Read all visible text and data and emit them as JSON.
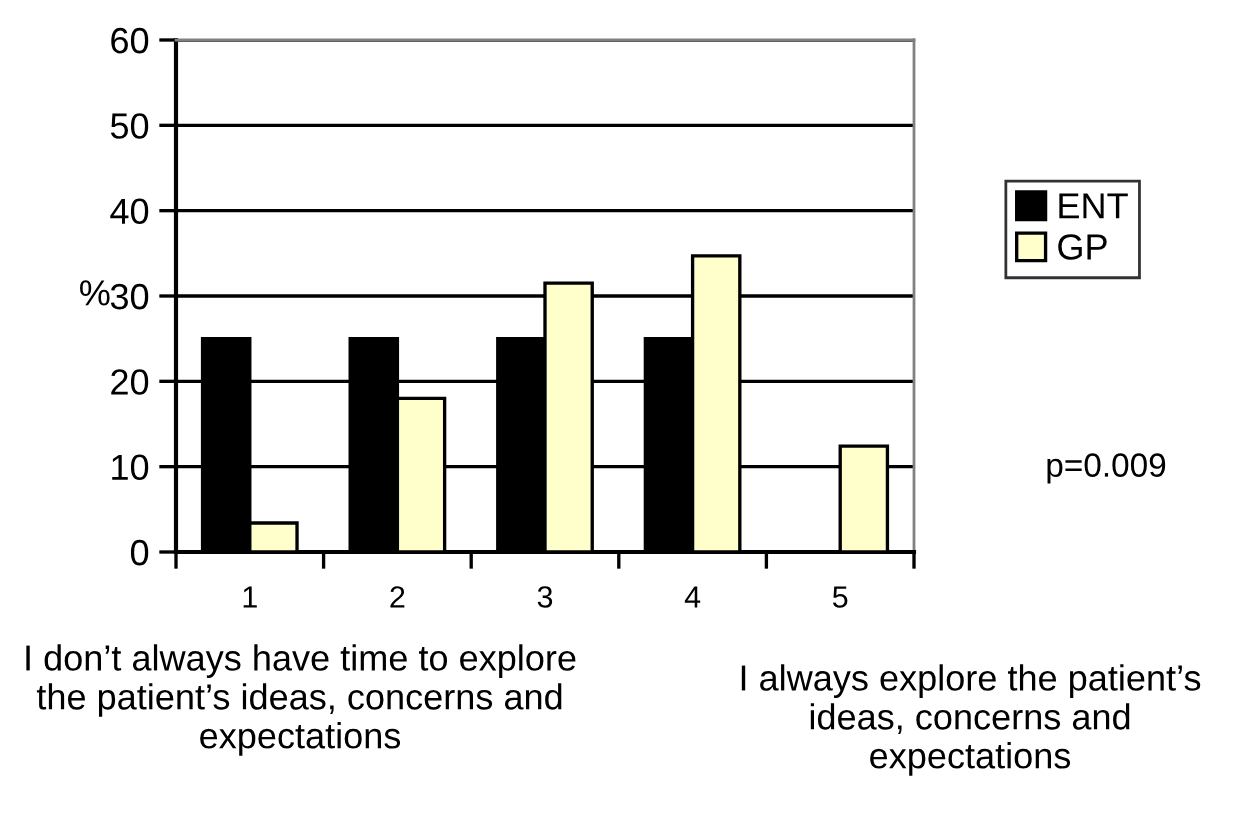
{
  "chart_data": {
    "type": "bar",
    "ylabel": "%",
    "categories": [
      "1",
      "2",
      "3",
      "4",
      "5"
    ],
    "series": [
      {
        "name": "ENT",
        "color": "#000000",
        "values": [
          25,
          25,
          25,
          25,
          0
        ]
      },
      {
        "name": "GP",
        "color": "#ffffcc",
        "values": [
          3.4,
          18,
          31.5,
          34.7,
          12.4
        ]
      }
    ],
    "ylim": [
      0,
      60
    ],
    "yticks": [
      0,
      10,
      20,
      30,
      40,
      50,
      60
    ],
    "grid": "y",
    "legend": "right",
    "annotations": [
      "p=0.009",
      "I don’t always have time to explore the patient’s ideas, concerns and expectations",
      "I always explore the patient’s ideas, concerns and expectations"
    ]
  }
}
